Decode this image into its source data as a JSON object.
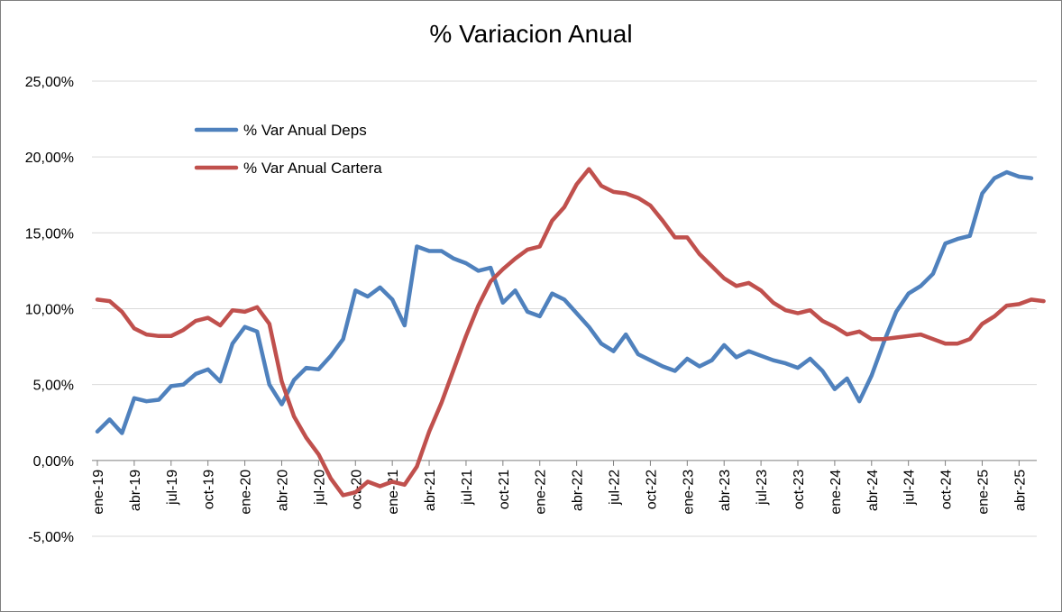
{
  "chart_data": {
    "type": "line",
    "title": "% Variacion Anual",
    "xlabel": "",
    "ylabel": "",
    "ylim": [
      -0.05,
      0.25
    ],
    "y_ticks": [
      {
        "value": 0.25,
        "label": "25,00%"
      },
      {
        "value": 0.2,
        "label": "20,00%"
      },
      {
        "value": 0.15,
        "label": "15,00%"
      },
      {
        "value": 0.1,
        "label": "10,00%"
      },
      {
        "value": 0.05,
        "label": "5,00%"
      },
      {
        "value": 0.0,
        "label": "0,00%"
      },
      {
        "value": -0.05,
        "label": "-5,00%"
      }
    ],
    "x_tick_labels": [
      "ene-19",
      "abr-19",
      "jul-19",
      "oct-19",
      "ene-20",
      "abr-20",
      "jul-20",
      "oct-20",
      "ene-21",
      "abr-21",
      "jul-21",
      "oct-21",
      "ene-22",
      "abr-22",
      "jul-22",
      "oct-22",
      "ene-23",
      "abr-23",
      "jul-23",
      "oct-23",
      "ene-24",
      "abr-24",
      "jul-24",
      "oct-24",
      "ene-25",
      "abr-25"
    ],
    "x_tick_every": 3,
    "grid": "horizontal",
    "legend_position": "top-left",
    "series": [
      {
        "name": "% Var Anual Deps",
        "color": "#4F81BD",
        "values": [
          0.019,
          0.027,
          0.018,
          0.041,
          0.039,
          0.04,
          0.049,
          0.05,
          0.057,
          0.06,
          0.052,
          0.077,
          0.088,
          0.085,
          0.05,
          0.037,
          0.053,
          0.061,
          0.06,
          0.069,
          0.08,
          0.112,
          0.108,
          0.114,
          0.106,
          0.089,
          0.141,
          0.138,
          0.138,
          0.133,
          0.13,
          0.125,
          0.127,
          0.104,
          0.112,
          0.098,
          0.095,
          0.11,
          0.106,
          0.097,
          0.088,
          0.077,
          0.072,
          0.083,
          0.07,
          0.066,
          0.062,
          0.059,
          0.067,
          0.062,
          0.066,
          0.076,
          0.068,
          0.072,
          0.069,
          0.066,
          0.064,
          0.061,
          0.067,
          0.059,
          0.047,
          0.054,
          0.039,
          0.056,
          0.078,
          0.098,
          0.11,
          0.115,
          0.123,
          0.143,
          0.146,
          0.148,
          0.176,
          0.186,
          0.19,
          0.187,
          0.186
        ]
      },
      {
        "name": "% Var Anual Cartera",
        "color": "#C0504D",
        "values": [
          0.106,
          0.105,
          0.098,
          0.087,
          0.083,
          0.082,
          0.082,
          0.086,
          0.092,
          0.094,
          0.089,
          0.099,
          0.098,
          0.101,
          0.09,
          0.052,
          0.029,
          0.015,
          0.004,
          -0.012,
          -0.023,
          -0.021,
          -0.014,
          -0.017,
          -0.014,
          -0.016,
          -0.004,
          0.019,
          0.038,
          0.06,
          0.082,
          0.102,
          0.118,
          0.126,
          0.133,
          0.139,
          0.141,
          0.158,
          0.167,
          0.182,
          0.192,
          0.181,
          0.177,
          0.176,
          0.173,
          0.168,
          0.158,
          0.147,
          0.147,
          0.136,
          0.128,
          0.12,
          0.115,
          0.117,
          0.112,
          0.104,
          0.099,
          0.097,
          0.099,
          0.092,
          0.088,
          0.083,
          0.085,
          0.08,
          0.08,
          0.081,
          0.082,
          0.083,
          0.08,
          0.077,
          0.077,
          0.08,
          0.09,
          0.095,
          0.102,
          0.103,
          0.106,
          0.105
        ]
      }
    ]
  }
}
